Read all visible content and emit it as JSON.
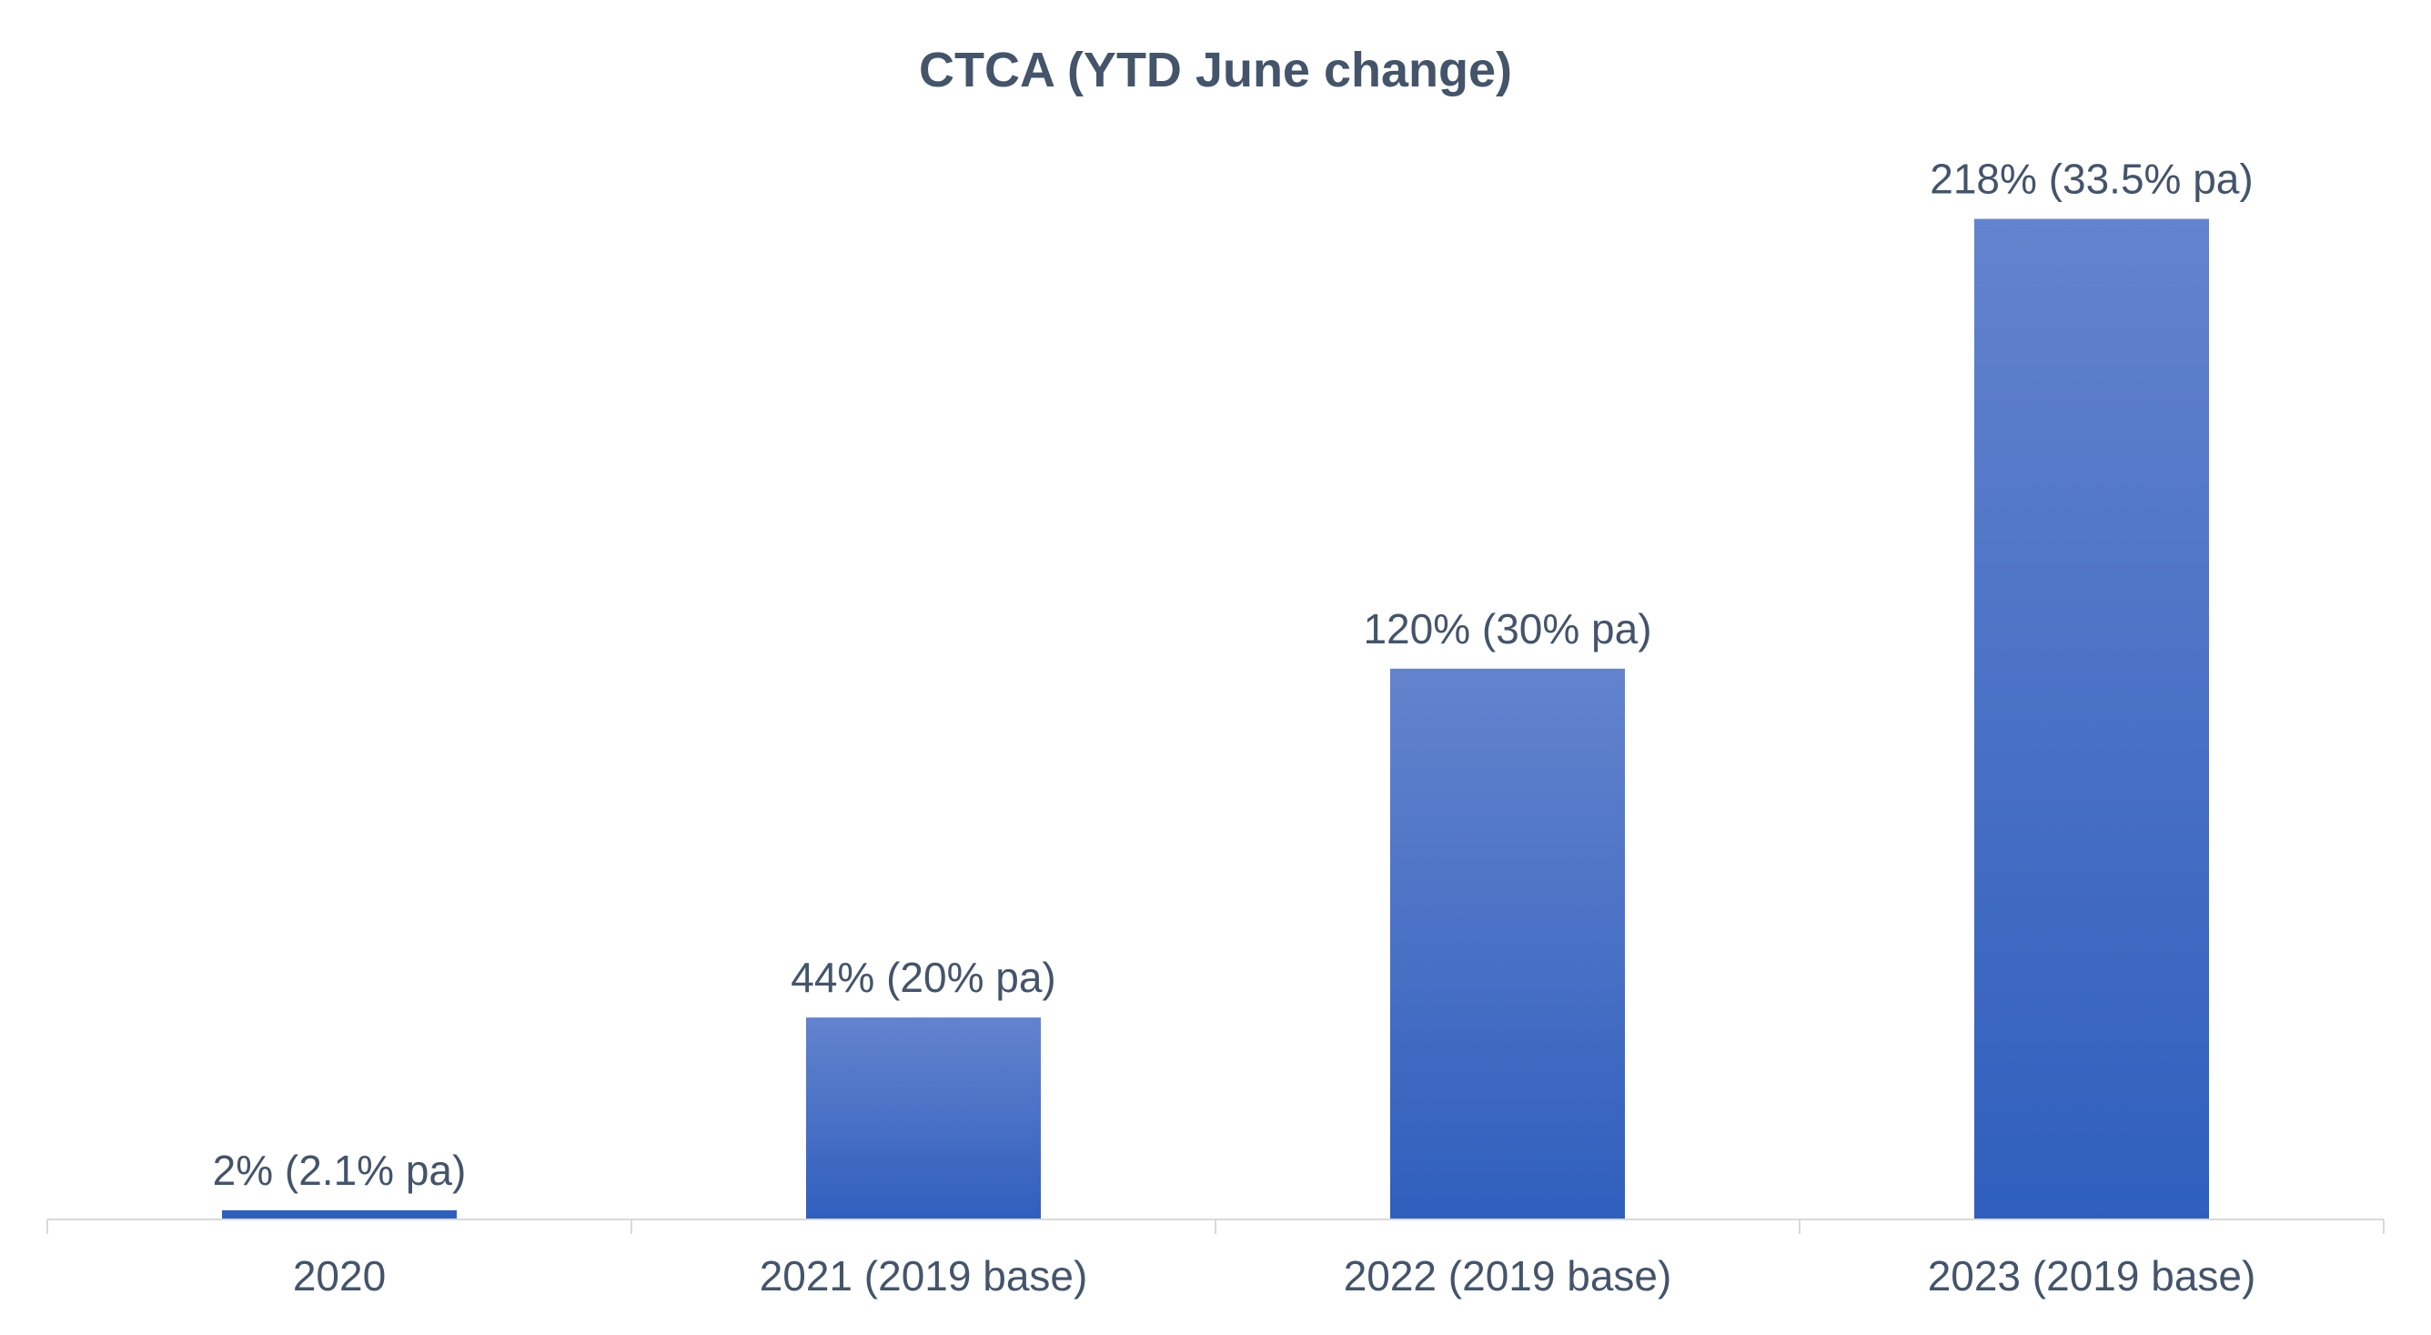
{
  "chart_data": {
    "type": "bar",
    "title": "CTCA (YTD June change)",
    "xlabel": "",
    "ylabel": "",
    "categories": [
      "2020",
      "2021 (2019 base)",
      "2022 (2019 base)",
      "2023 (2019 base)"
    ],
    "values": [
      2,
      44,
      120,
      218
    ],
    "data_labels": [
      "2% (2.1% pa)",
      "44% (20% pa)",
      "120% (30% pa)",
      "218% (33.5% pa)"
    ],
    "value_unit": "%",
    "ylim": [
      0,
      230
    ],
    "grid": false,
    "legend": "none",
    "colors": {
      "bar_top": "#6383cd",
      "bar_bottom": "#2f5fbd",
      "text": "#44546a",
      "axis": "#d9d9d9"
    }
  }
}
